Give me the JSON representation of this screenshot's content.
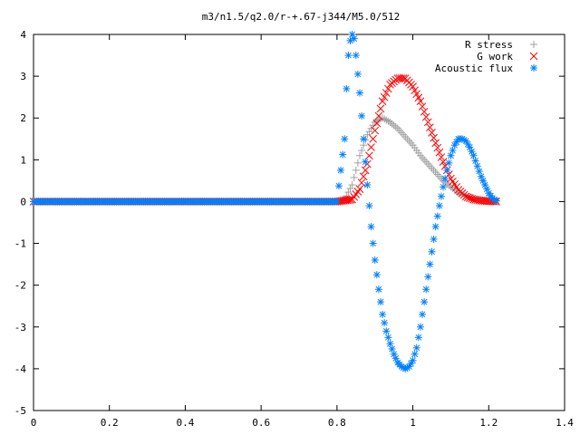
{
  "chart_data": {
    "type": "scatter",
    "title": "m3/n1.5/q2.0/r-+.67-j344/M5.0/512",
    "xlabel": "",
    "ylabel": "",
    "xlim": [
      0,
      1.4
    ],
    "ylim": [
      -5,
      4
    ],
    "xticks": [
      "0",
      "0.2",
      "0.4",
      "0.6",
      "0.8",
      "1",
      "1.2",
      "1.4"
    ],
    "yticks": [
      "4",
      "3",
      "2",
      "1",
      "0",
      "-1",
      "-2",
      "-3",
      "-4",
      "-5"
    ],
    "grid": false,
    "legend_position": "top-right",
    "series": [
      {
        "name": "R stress",
        "marker": "plus",
        "color": "#a0a0a0",
        "x": [
          0,
          0.1,
          0.2,
          0.3,
          0.4,
          0.5,
          0.6,
          0.7,
          0.8,
          0.82,
          0.84,
          0.86,
          0.88,
          0.9,
          0.92,
          0.94,
          0.96,
          0.98,
          1.0,
          1.02,
          1.04,
          1.06,
          1.08,
          1.1,
          1.12,
          1.14,
          1.16,
          1.18,
          1.2,
          1.22
        ],
        "y": [
          0,
          0,
          0,
          0,
          0,
          0,
          0,
          0,
          0,
          0.05,
          0.4,
          1.1,
          1.6,
          1.9,
          2.0,
          1.9,
          1.75,
          1.55,
          1.35,
          1.1,
          0.9,
          0.7,
          0.5,
          0.35,
          0.22,
          0.13,
          0.07,
          0.04,
          0.02,
          0.01
        ]
      },
      {
        "name": "G work",
        "marker": "cross",
        "color": "#ff0000",
        "x": [
          0,
          0.1,
          0.2,
          0.3,
          0.4,
          0.5,
          0.6,
          0.7,
          0.8,
          0.84,
          0.86,
          0.88,
          0.9,
          0.92,
          0.94,
          0.96,
          0.98,
          1.0,
          1.02,
          1.04,
          1.06,
          1.08,
          1.1,
          1.12,
          1.14,
          1.16,
          1.18,
          1.2,
          1.22
        ],
        "y": [
          0,
          0,
          0,
          0,
          0,
          0,
          0,
          0,
          0,
          0.05,
          0.3,
          0.9,
          1.7,
          2.4,
          2.8,
          2.95,
          2.95,
          2.75,
          2.4,
          1.9,
          1.4,
          0.95,
          0.55,
          0.28,
          0.12,
          0.05,
          0.02,
          0.01,
          0
        ]
      },
      {
        "name": "Acoustic flux",
        "marker": "star",
        "color": "#0080ff",
        "x": [
          0,
          0.1,
          0.2,
          0.3,
          0.4,
          0.5,
          0.6,
          0.7,
          0.8,
          0.82,
          0.825,
          0.83,
          0.835,
          0.84,
          0.845,
          0.85,
          0.86,
          0.87,
          0.88,
          0.89,
          0.9,
          0.91,
          0.92,
          0.93,
          0.94,
          0.95,
          0.96,
          0.97,
          0.98,
          0.99,
          1.0,
          1.01,
          1.02,
          1.03,
          1.04,
          1.05,
          1.06,
          1.07,
          1.08,
          1.09,
          1.1,
          1.11,
          1.12,
          1.13,
          1.14,
          1.15,
          1.16,
          1.17,
          1.18,
          1.19,
          1.2,
          1.21,
          1.22
        ],
        "y": [
          0,
          0,
          0,
          0,
          0,
          0,
          0,
          0,
          0,
          1.5,
          2.7,
          3.5,
          3.85,
          4.0,
          3.9,
          3.5,
          2.6,
          1.5,
          0.4,
          -0.6,
          -1.4,
          -2.1,
          -2.7,
          -3.1,
          -3.4,
          -3.65,
          -3.85,
          -3.95,
          -4.0,
          -3.95,
          -3.8,
          -3.5,
          -3.0,
          -2.4,
          -1.8,
          -1.2,
          -0.6,
          -0.1,
          0.35,
          0.75,
          1.1,
          1.35,
          1.5,
          1.5,
          1.45,
          1.3,
          1.1,
          0.85,
          0.6,
          0.4,
          0.2,
          0.08,
          0.02
        ]
      }
    ]
  }
}
